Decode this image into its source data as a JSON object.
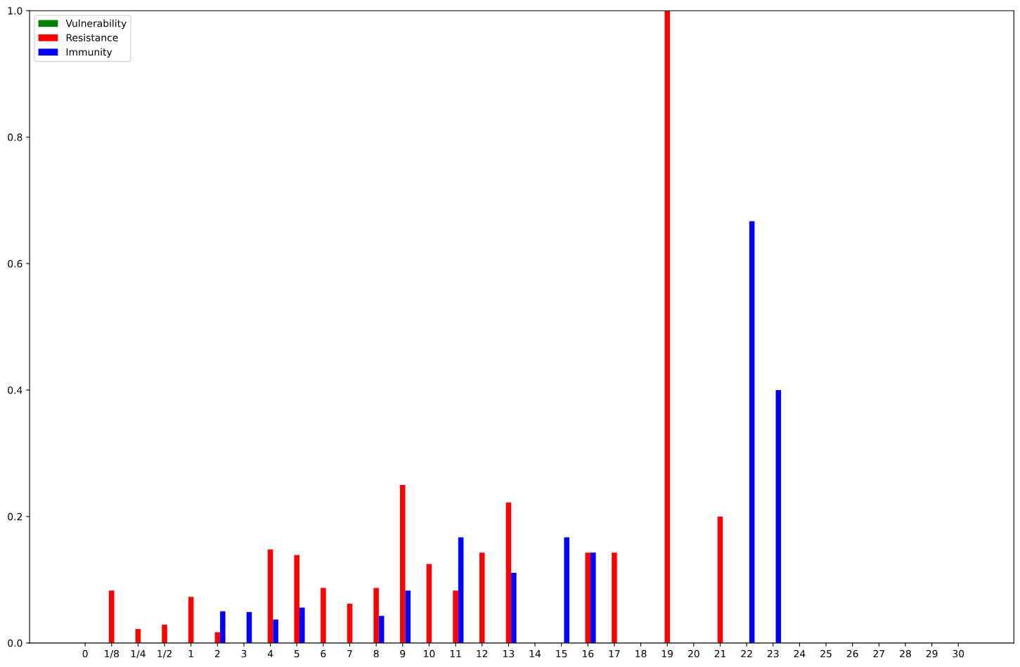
{
  "chart_data": {
    "type": "bar",
    "categories": [
      "0",
      "1/8",
      "1/4",
      "1/2",
      "1",
      "2",
      "3",
      "4",
      "5",
      "6",
      "7",
      "8",
      "9",
      "10",
      "11",
      "12",
      "13",
      "14",
      "15",
      "16",
      "17",
      "18",
      "19",
      "20",
      "21",
      "22",
      "23",
      "24",
      "25",
      "26",
      "27",
      "28",
      "29",
      "30"
    ],
    "series": [
      {
        "name": "Vulnerability",
        "color": "#008000",
        "values": [
          0,
          0,
          0,
          0,
          0,
          0,
          0,
          0,
          0,
          0,
          0,
          0,
          0,
          0,
          0,
          0,
          0,
          0,
          0,
          0,
          0,
          0,
          0,
          0,
          0,
          0,
          0,
          0,
          0,
          0,
          0,
          0,
          0,
          0
        ]
      },
      {
        "name": "Resistance",
        "color": "#ff0000",
        "values": [
          0,
          0.083,
          0.022,
          0.029,
          0.073,
          0.017,
          0,
          0.148,
          0.139,
          0.087,
          0.062,
          0.087,
          0.25,
          0.125,
          0.083,
          0.143,
          0.222,
          0,
          0,
          0.143,
          0.143,
          0,
          1.0,
          0,
          0.2,
          0,
          0,
          0,
          0,
          0,
          0,
          0,
          0,
          0
        ]
      },
      {
        "name": "Immunity",
        "color": "#0000ff",
        "values": [
          0,
          0,
          0,
          0,
          0,
          0.05,
          0.049,
          0.037,
          0.056,
          0,
          0,
          0.043,
          0.083,
          0,
          0.167,
          0,
          0.111,
          0,
          0.167,
          0.143,
          0,
          0,
          0,
          0,
          0,
          0.667,
          0.4,
          0,
          0,
          0,
          0,
          0,
          0,
          0
        ]
      }
    ],
    "ylim": [
      0,
      1.0
    ],
    "yticks": [
      {
        "value": 0,
        "label": "0.0"
      },
      {
        "value": 0.2,
        "label": "0.2"
      },
      {
        "value": 0.4,
        "label": "0.4"
      },
      {
        "value": 0.6,
        "label": "0.6"
      },
      {
        "value": 0.8,
        "label": "0.8"
      },
      {
        "value": 1.0,
        "label": "1.0"
      }
    ],
    "grid": false,
    "legend": "top left"
  }
}
